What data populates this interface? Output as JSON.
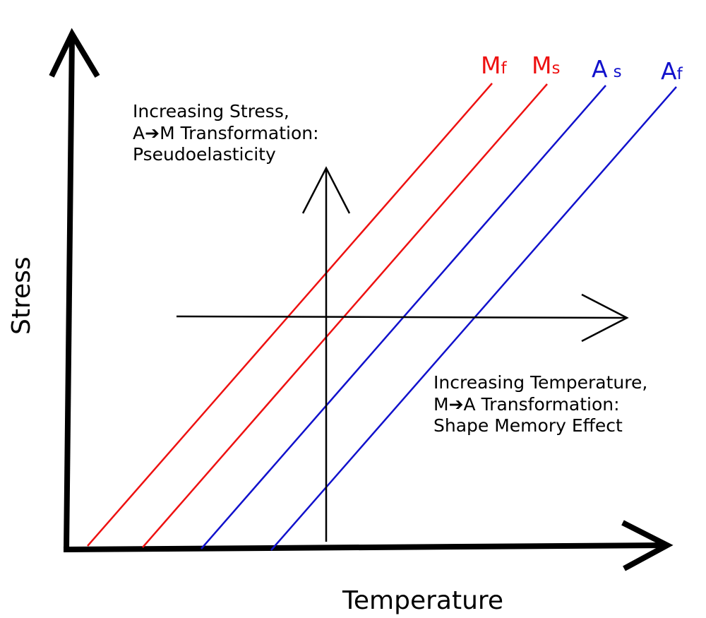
{
  "axes": {
    "x_label": "Temperature",
    "y_label": "Stress"
  },
  "colors": {
    "martensite": "#ee1111",
    "austenite": "#1111cc",
    "axis": "#000000"
  },
  "curves": [
    {
      "main": "M",
      "sub": "f",
      "color_key": "martensite"
    },
    {
      "main": "M",
      "sub": "s",
      "color_key": "martensite"
    },
    {
      "main": "A",
      "sub": "s",
      "color_key": "austenite"
    },
    {
      "main": "A",
      "sub": "f",
      "color_key": "austenite"
    }
  ],
  "annotations": {
    "stress_path": {
      "line1": "Increasing Stress,",
      "line2_prefix": "A",
      "arrow_glyph": "➔",
      "line2_suffix": "M Transformation:",
      "line3": "Pseudoelasticity"
    },
    "temperature_path": {
      "line1": "Increasing Temperature,",
      "line2_prefix": "M",
      "arrow_glyph": "➔",
      "line2_suffix": "A Transformation:",
      "line3": "Shape Memory Effect"
    }
  }
}
